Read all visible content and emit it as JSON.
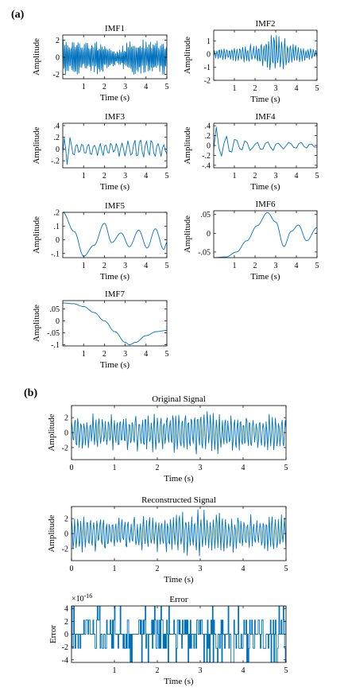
{
  "panels": {
    "a": "(a)",
    "b": "(b)"
  },
  "chart_data": [
    {
      "id": "imf1",
      "type": "line",
      "title": "IMF1",
      "xlabel": "Time (s)",
      "ylabel": "Amplitude",
      "xlim": [
        0,
        5
      ],
      "ylim": [
        -2.5,
        2.6
      ],
      "xticks": [
        1,
        2,
        3,
        4,
        5
      ],
      "yticks": [
        -2,
        0,
        2
      ],
      "series": [
        {
          "x": [
            0,
            1,
            1.9,
            2.6,
            3.3,
            4,
            5
          ],
          "envelope": [
            2.3,
            2.2,
            2.0,
            1.0,
            2.3,
            2.0,
            2.2
          ],
          "cycles_per_s": 14
        }
      ]
    },
    {
      "id": "imf2",
      "type": "line",
      "title": "IMF2",
      "xlabel": "Time (s)",
      "ylabel": "Amplitude",
      "xlim": [
        0,
        5
      ],
      "ylim": [
        -2,
        1.8
      ],
      "xticks": [
        1,
        2,
        3,
        4,
        5
      ],
      "yticks": [
        -2,
        -1,
        0,
        1
      ],
      "series": [
        {
          "x": [
            0,
            1,
            2,
            2.6,
            2.9,
            3.2,
            3.7,
            4.2,
            5
          ],
          "envelope": [
            0.4,
            0.6,
            0.8,
            1.2,
            1.8,
            1.6,
            1.1,
            0.6,
            0.4
          ],
          "cycles_per_s": 8
        }
      ]
    },
    {
      "id": "imf3",
      "type": "line",
      "title": "IMF3",
      "xlabel": "Time (s)",
      "ylabel": "Amplitude",
      "xlim": [
        0,
        5
      ],
      "ylim": [
        -0.32,
        0.44
      ],
      "xticks": [
        1,
        2,
        3,
        4,
        5
      ],
      "yticks": [
        -0.2,
        0,
        0.2,
        0.4
      ],
      "series": [
        {
          "x": [
            0,
            0.25,
            0.6,
            1.5,
            2.5,
            3.5,
            4.5,
            5
          ],
          "envelope": [
            0.4,
            0.25,
            0.12,
            0.13,
            0.13,
            0.2,
            0.17,
            0.1
          ],
          "cycles_per_s": 3.6
        }
      ]
    },
    {
      "id": "imf4",
      "type": "line",
      "title": "IMF4",
      "xlabel": "Time (s)",
      "ylabel": "Amplitude",
      "xlim": [
        0,
        5
      ],
      "ylim": [
        -0.45,
        0.45
      ],
      "xticks": [
        1,
        2,
        3,
        4,
        5
      ],
      "yticks": [
        -0.4,
        -0.2,
        0,
        0.2,
        0.4
      ],
      "series": [
        {
          "x": [
            0,
            0.2,
            0.6,
            1.2,
            2,
            3,
            4,
            5
          ],
          "envelope": [
            0.4,
            0.45,
            0.25,
            0.16,
            0.13,
            0.11,
            0.08,
            0.05
          ],
          "cycles_per_s": 2
        }
      ]
    },
    {
      "id": "imf5",
      "type": "line",
      "title": "IMF5",
      "xlabel": "Time (s)",
      "ylabel": "Amplitude",
      "xlim": [
        0,
        5
      ],
      "ylim": [
        -0.13,
        0.2
      ],
      "xticks": [
        1,
        2,
        3,
        4,
        5
      ],
      "yticks": [
        -0.1,
        0,
        0.1,
        0.2
      ],
      "series": [
        {
          "x": [
            0,
            0.55,
            1,
            1.5,
            2,
            2.35,
            2.8,
            3.2,
            3.65,
            4.05,
            4.45,
            4.85,
            5
          ],
          "y": [
            0.2,
            0.06,
            -0.12,
            -0.04,
            0.12,
            -0.02,
            0.05,
            -0.05,
            0.07,
            -0.06,
            0.08,
            -0.07,
            -0.02
          ]
        }
      ]
    },
    {
      "id": "imf6",
      "type": "line",
      "title": "IMF6",
      "xlabel": "Time (s)",
      "ylabel": "Amplitude",
      "xlim": [
        0,
        5
      ],
      "ylim": [
        -0.065,
        0.06
      ],
      "xticks": [
        1,
        2,
        3,
        4,
        5
      ],
      "yticks": [
        -0.05,
        0,
        0.05
      ],
      "series": [
        {
          "x": [
            0,
            0.6,
            1.1,
            1.6,
            2.1,
            2.6,
            3.0,
            3.4,
            3.75,
            4.1,
            4.5,
            5
          ],
          "y": [
            -0.065,
            -0.063,
            -0.05,
            -0.02,
            0.02,
            0.055,
            0.03,
            -0.035,
            0.005,
            0.022,
            -0.02,
            0.015
          ]
        }
      ]
    },
    {
      "id": "imf7",
      "type": "line",
      "title": "IMF7",
      "xlabel": "Time (s)",
      "ylabel": "Amplitude",
      "xlim": [
        0,
        5
      ],
      "ylim": [
        -0.105,
        0.085
      ],
      "xticks": [
        1,
        2,
        3,
        4,
        5
      ],
      "yticks": [
        -0.1,
        -0.05,
        0,
        0.05
      ],
      "series": [
        {
          "x": [
            0,
            0.5,
            1,
            1.5,
            2,
            2.5,
            3,
            3.2,
            3.5,
            4,
            4.5,
            5
          ],
          "y": [
            0.075,
            0.072,
            0.06,
            0.035,
            0,
            -0.045,
            -0.09,
            -0.1,
            -0.09,
            -0.062,
            -0.045,
            -0.04
          ]
        }
      ]
    },
    {
      "id": "original",
      "type": "line",
      "title": "Original Signal",
      "xlabel": "Time (s)",
      "ylabel": "Amplitude",
      "xlim": [
        0,
        5
      ],
      "ylim": [
        -3.6,
        3.6
      ],
      "xticks": [
        0,
        1,
        2,
        3,
        4,
        5
      ],
      "yticks": [
        -2,
        0,
        2
      ],
      "series": [
        {
          "x": [
            0,
            1,
            2,
            2.6,
            3,
            3.5,
            4,
            5
          ],
          "envelope": [
            2.6,
            2.5,
            2.7,
            3.0,
            3.4,
            2.8,
            2.6,
            2.5
          ],
          "cycles_per_s": 14
        }
      ]
    },
    {
      "id": "reconstructed",
      "type": "line",
      "title": "Reconstructed Signal",
      "xlabel": "Time (s)",
      "ylabel": "Amplitude",
      "xlim": [
        0,
        5
      ],
      "ylim": [
        -3.6,
        3.6
      ],
      "xticks": [
        0,
        1,
        2,
        3,
        4,
        5
      ],
      "yticks": [
        -2,
        0,
        2
      ],
      "series": [
        {
          "x": [
            0,
            1,
            2,
            2.6,
            3,
            3.5,
            4,
            5
          ],
          "envelope": [
            2.6,
            2.5,
            2.7,
            3.0,
            3.4,
            2.8,
            2.6,
            2.5
          ],
          "cycles_per_s": 14
        }
      ]
    },
    {
      "id": "error",
      "type": "line",
      "title": "Error",
      "xlabel": "Time (s)",
      "ylabel": "Error",
      "exponent_label": "×10",
      "exponent_power": "-16",
      "xlim": [
        0,
        5
      ],
      "ylim": [
        -4.4,
        4.4
      ],
      "xticks": [
        1,
        2,
        3,
        4,
        5
      ],
      "yticks": [
        -4,
        -2,
        0,
        2,
        4
      ],
      "series": [
        {
          "levels": [
            -4.4,
            -2.2,
            0,
            2.2,
            4.4
          ],
          "step_weights": [
            0.06,
            0.22,
            0.44,
            0.22,
            0.06
          ],
          "steps_per_s": 60
        }
      ]
    }
  ]
}
